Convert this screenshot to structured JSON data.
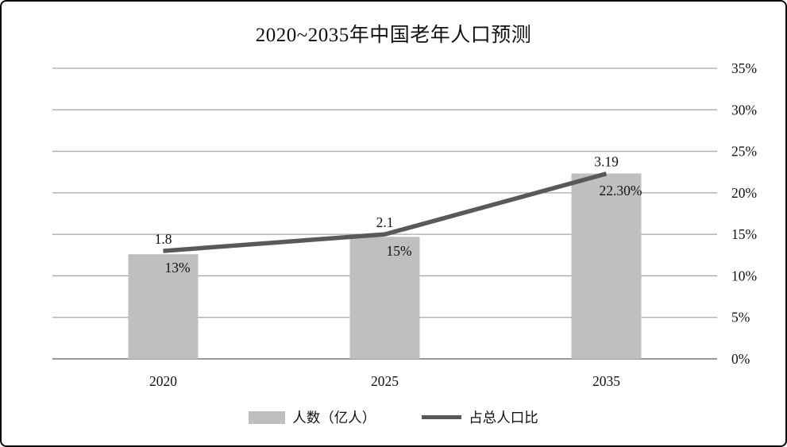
{
  "title": "2020~2035年中国老年人口预测",
  "chart_data": {
    "type": "combo-bar-line",
    "categories": [
      "2020",
      "2025",
      "2035"
    ],
    "series": [
      {
        "name": "人数（亿人）",
        "type": "bar",
        "values": [
          1.8,
          2.1,
          3.19
        ],
        "data_labels": [
          "1.8",
          "2.1",
          "3.19"
        ],
        "color": "#bfbfbf",
        "value_axis": "hidden-left",
        "ylim": [
          0,
          5
        ]
      },
      {
        "name": "占总人口比",
        "type": "line",
        "values": [
          13,
          15,
          22.3
        ],
        "data_labels": [
          "13%",
          "15%",
          "22.30%"
        ],
        "color": "#595959",
        "value_axis": "right",
        "ylim": [
          0,
          35
        ]
      }
    ],
    "right_axis": {
      "ylim": [
        0,
        35
      ],
      "ticks": [
        0,
        5,
        10,
        15,
        20,
        25,
        30,
        35
      ],
      "tick_labels": [
        "0%",
        "5%",
        "10%",
        "15%",
        "20%",
        "25%",
        "30%",
        "35%"
      ]
    },
    "grid": true,
    "legend_position": "bottom",
    "colors": {
      "gridline": "#a6a6a6",
      "axis_line": "#999999",
      "text": "#111111",
      "bar_fill": "#bfbfbf",
      "line_stroke": "#595959"
    }
  }
}
